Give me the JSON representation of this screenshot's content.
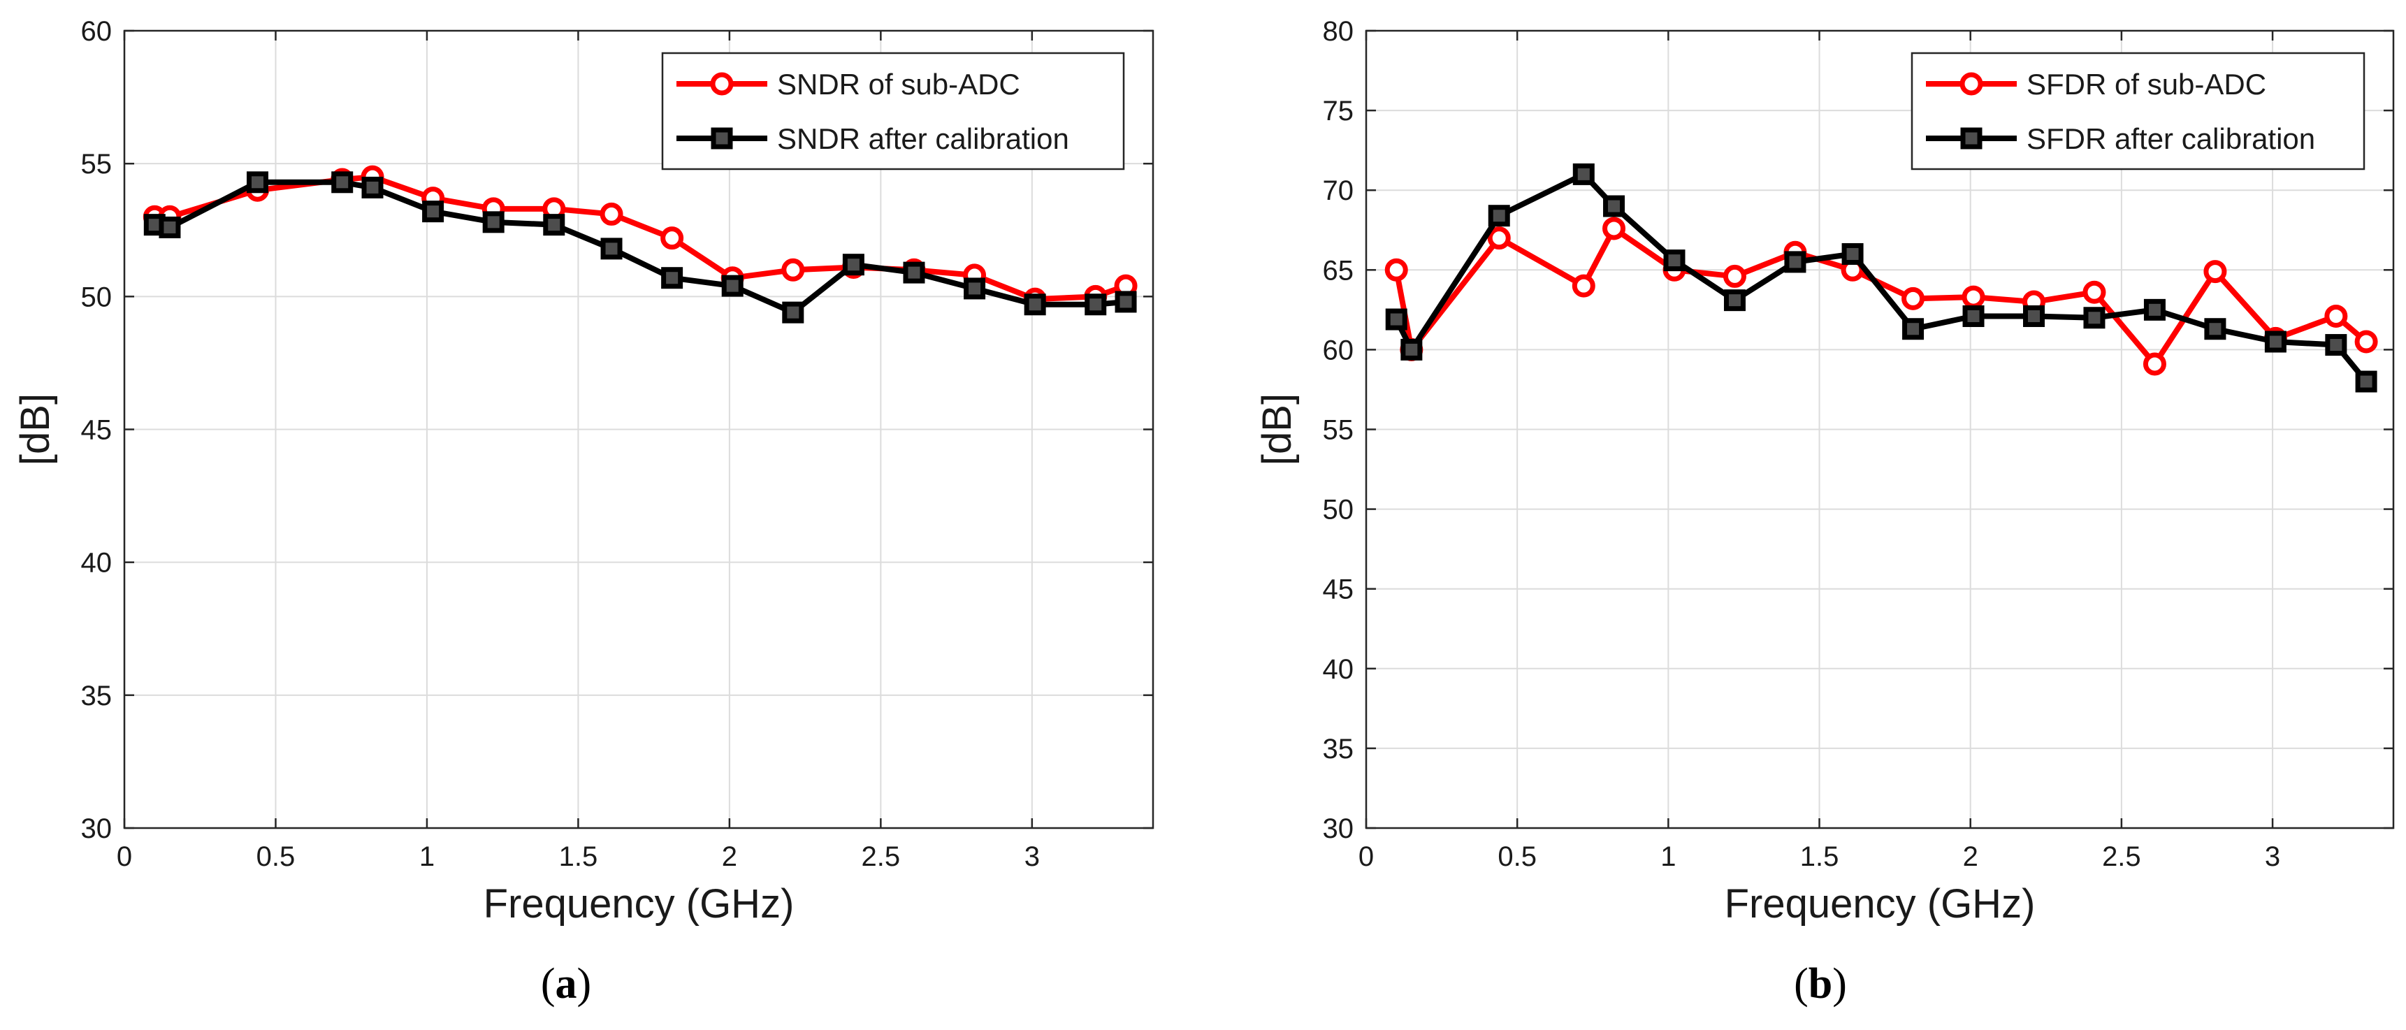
{
  "chart_data": [
    {
      "type": "line",
      "panel_label": "a",
      "title": "",
      "xlabel": "Frequency (GHz)",
      "ylabel": "[dB]",
      "xlim": [
        0,
        3.4
      ],
      "ylim": [
        30,
        60
      ],
      "xticks": [
        0,
        0.5,
        1,
        1.5,
        2,
        2.5,
        3
      ],
      "xtick_labels": [
        "0",
        "0.5",
        "1",
        "1.5",
        "2",
        "2.5",
        "3"
      ],
      "yticks": [
        30,
        35,
        40,
        45,
        50,
        55,
        60
      ],
      "ytick_labels": [
        "30",
        "35",
        "40",
        "45",
        "50",
        "55",
        "60"
      ],
      "grid": true,
      "legend_position": "top-right",
      "series": [
        {
          "name": "SNDR of sub-ADC",
          "color": "#ff0000",
          "marker": "circle",
          "x": [
            0.1,
            0.15,
            0.44,
            0.72,
            0.82,
            1.02,
            1.22,
            1.42,
            1.61,
            1.81,
            2.01,
            2.21,
            2.41,
            2.61,
            2.81,
            3.01,
            3.21,
            3.31
          ],
          "y": [
            53.0,
            53.0,
            54.0,
            54.4,
            54.5,
            53.7,
            53.3,
            53.3,
            53.1,
            52.2,
            50.7,
            51.0,
            51.1,
            51.0,
            50.8,
            49.9,
            50.0,
            50.4
          ]
        },
        {
          "name": "SNDR after calibration",
          "color": "#000000",
          "marker": "square",
          "x": [
            0.1,
            0.15,
            0.44,
            0.72,
            0.82,
            1.02,
            1.22,
            1.42,
            1.61,
            1.81,
            2.01,
            2.21,
            2.41,
            2.61,
            2.81,
            3.01,
            3.21,
            3.31
          ],
          "y": [
            52.7,
            52.6,
            54.3,
            54.3,
            54.1,
            53.2,
            52.8,
            52.7,
            51.8,
            50.7,
            50.4,
            49.4,
            51.2,
            50.9,
            50.3,
            49.7,
            49.7,
            49.8
          ]
        }
      ]
    },
    {
      "type": "line",
      "panel_label": "b",
      "title": "",
      "xlabel": "Frequency (GHz)",
      "ylabel": "[dB]",
      "xlim": [
        0,
        3.4
      ],
      "ylim": [
        30,
        80
      ],
      "xticks": [
        0,
        0.5,
        1,
        1.5,
        2,
        2.5,
        3
      ],
      "xtick_labels": [
        "0",
        "0.5",
        "1",
        "1.5",
        "2",
        "2.5",
        "3"
      ],
      "yticks": [
        30,
        35,
        40,
        45,
        50,
        55,
        60,
        65,
        70,
        75,
        80
      ],
      "ytick_labels": [
        "30",
        "35",
        "40",
        "45",
        "50",
        "55",
        "60",
        "65",
        "70",
        "75",
        "80"
      ],
      "grid": true,
      "legend_position": "top-right",
      "series": [
        {
          "name": "SFDR of sub-ADC",
          "color": "#ff0000",
          "marker": "circle",
          "x": [
            0.1,
            0.15,
            0.44,
            0.72,
            0.82,
            1.02,
            1.22,
            1.42,
            1.61,
            1.81,
            2.01,
            2.21,
            2.41,
            2.61,
            2.81,
            3.01,
            3.21,
            3.31
          ],
          "y": [
            65.0,
            60.0,
            67.0,
            64.0,
            67.6,
            65.0,
            64.6,
            66.1,
            65.0,
            63.2,
            63.3,
            63.0,
            63.6,
            59.1,
            64.9,
            60.7,
            62.1,
            60.5
          ]
        },
        {
          "name": "SFDR after calibration",
          "color": "#000000",
          "marker": "square",
          "x": [
            0.1,
            0.15,
            0.44,
            0.72,
            0.82,
            1.02,
            1.22,
            1.42,
            1.61,
            1.81,
            2.01,
            2.21,
            2.41,
            2.61,
            2.81,
            3.01,
            3.21,
            3.31
          ],
          "y": [
            61.9,
            60.0,
            68.4,
            71.0,
            69.0,
            65.6,
            63.1,
            65.5,
            66.0,
            61.3,
            62.1,
            62.1,
            62.0,
            62.5,
            61.3,
            60.5,
            60.3,
            58.0
          ]
        }
      ]
    }
  ]
}
